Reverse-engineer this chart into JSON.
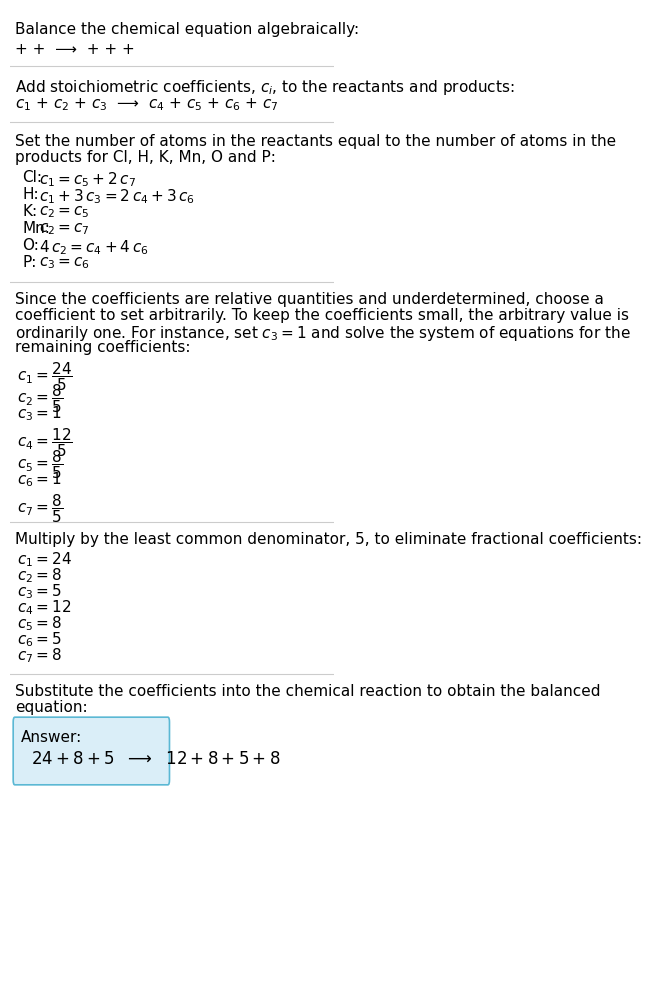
{
  "title": "Balance the chemical equation algebraically:",
  "line1": "+ +  ⟶  + + +",
  "section2_title": "Add stoichiometric coefficients, $c_i$, to the reactants and products:",
  "line2": "$c_1$ + $c_2$ + $c_3$  ⟶  $c_4$ + $c_5$ + $c_6$ + $c_7$",
  "section3_title": "Set the number of atoms in the reactants equal to the number of atoms in the\nproducts for Cl, H, K, Mn, O and P:",
  "equations": [
    [
      "Cl:",
      "$c_1 = c_5 + 2\\,c_7$"
    ],
    [
      "H:",
      "$c_1 + 3\\,c_3 = 2\\,c_4 + 3\\,c_6$"
    ],
    [
      "K:",
      "$c_2 = c_5$"
    ],
    [
      "Mn:",
      "$c_2 = c_7$"
    ],
    [
      "O:",
      "$4\\,c_2 = c_4 + 4\\,c_6$"
    ],
    [
      "P:",
      "$c_3 = c_6$"
    ]
  ],
  "section4_text": "Since the coefficients are relative quantities and underdetermined, choose a\ncoefficient to set arbitrarily. To keep the coefficients small, the arbitrary value is\nordinarily one. For instance, set $c_3 = 1$ and solve the system of equations for the\nremaining coefficients:",
  "fractional_coeffs": [
    "$c_1 = \\dfrac{24}{5}$",
    "$c_2 = \\dfrac{8}{5}$",
    "$c_3 = 1$",
    "$c_4 = \\dfrac{12}{5}$",
    "$c_5 = \\dfrac{8}{5}$",
    "$c_6 = 1$",
    "$c_7 = \\dfrac{8}{5}$"
  ],
  "section5_text": "Multiply by the least common denominator, 5, to eliminate fractional coefficients:",
  "integer_coeffs": [
    "$c_1 = 24$",
    "$c_2 = 8$",
    "$c_3 = 5$",
    "$c_4 = 12$",
    "$c_5 = 8$",
    "$c_6 = 5$",
    "$c_7 = 8$"
  ],
  "section6_text": "Substitute the coefficients into the chemical reaction to obtain the balanced\nequation:",
  "answer_label": "Answer:",
  "answer_eq": "$24 + 8 + 5$  $\\longrightarrow$  $12 + 8 + 5 + 8$",
  "bg_color": "#ffffff",
  "text_color": "#000000",
  "answer_box_color": "#daeef8",
  "answer_box_border": "#5bb8d4",
  "separator_color": "#cccccc",
  "font_size": 11,
  "small_font": 10
}
